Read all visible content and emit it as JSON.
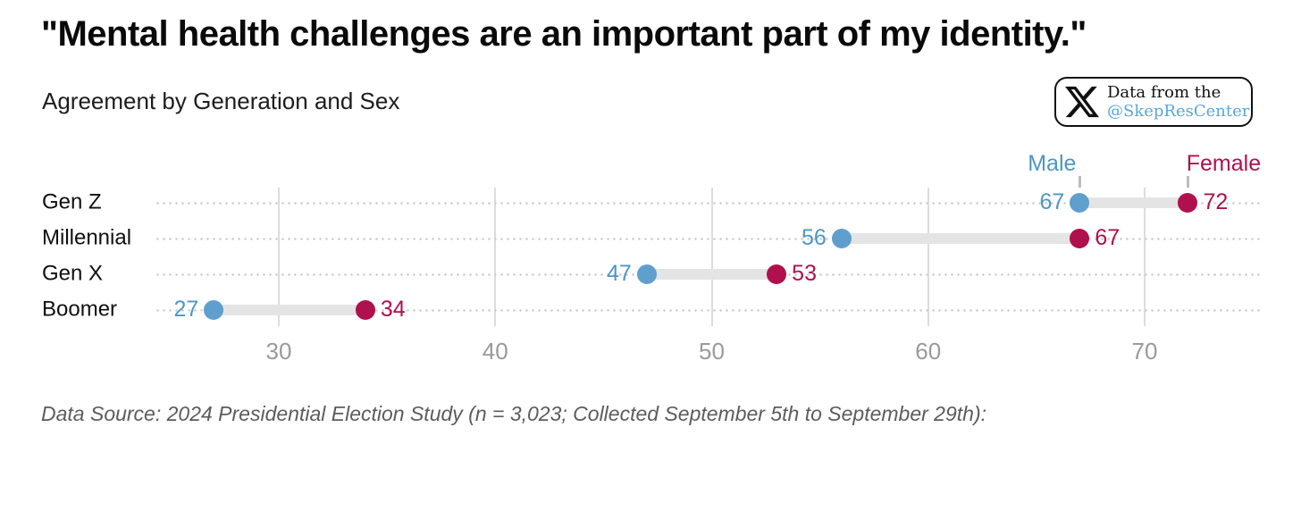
{
  "header": {
    "title": "\"Mental health challenges are an important part of my identity.\"",
    "subtitle": "Agreement by Generation and Sex",
    "badge": {
      "icon": "x-logo-icon",
      "line1": "Data from the",
      "line2": "@SkepResCenter"
    }
  },
  "chart_data": {
    "type": "dumbbell",
    "title": "\"Mental health challenges are an important part of my identity.\"",
    "subtitle": "Agreement by Generation and Sex",
    "categories": [
      "Gen Z",
      "Millennial",
      "Gen X",
      "Boomer"
    ],
    "series": [
      {
        "name": "Male",
        "color": "#5E9FCD",
        "label_color": "#4E96C6",
        "values": [
          67,
          56,
          47,
          27
        ]
      },
      {
        "name": "Female",
        "color": "#B0104D",
        "label_color": "#B0104D",
        "values": [
          72,
          67,
          53,
          34
        ]
      }
    ],
    "xticks": [
      30,
      40,
      50,
      60,
      70
    ],
    "xlim": [
      25,
      77
    ],
    "grid": "vertical solid gridlines at xticks; dotted horizontal guide per row",
    "legend_position": "above top row, Male left / Female right",
    "value_labels": "male value left of male dot, female value right of female dot"
  },
  "footer": {
    "source": "Data Source: 2024 Presidential Election Study (n = 3,023; Collected September 5th to September 29th):"
  },
  "colors": {
    "male": "#5E9FCD",
    "female": "#B0104D",
    "connector": "#E4E4E4",
    "row_guide_dots": "#CDCDCD",
    "gridline": "#DCDCDC",
    "axis_tick_text": "#9A9A9A",
    "footer_text": "#5c5c5c",
    "badge_handle": "#58A7D8"
  }
}
